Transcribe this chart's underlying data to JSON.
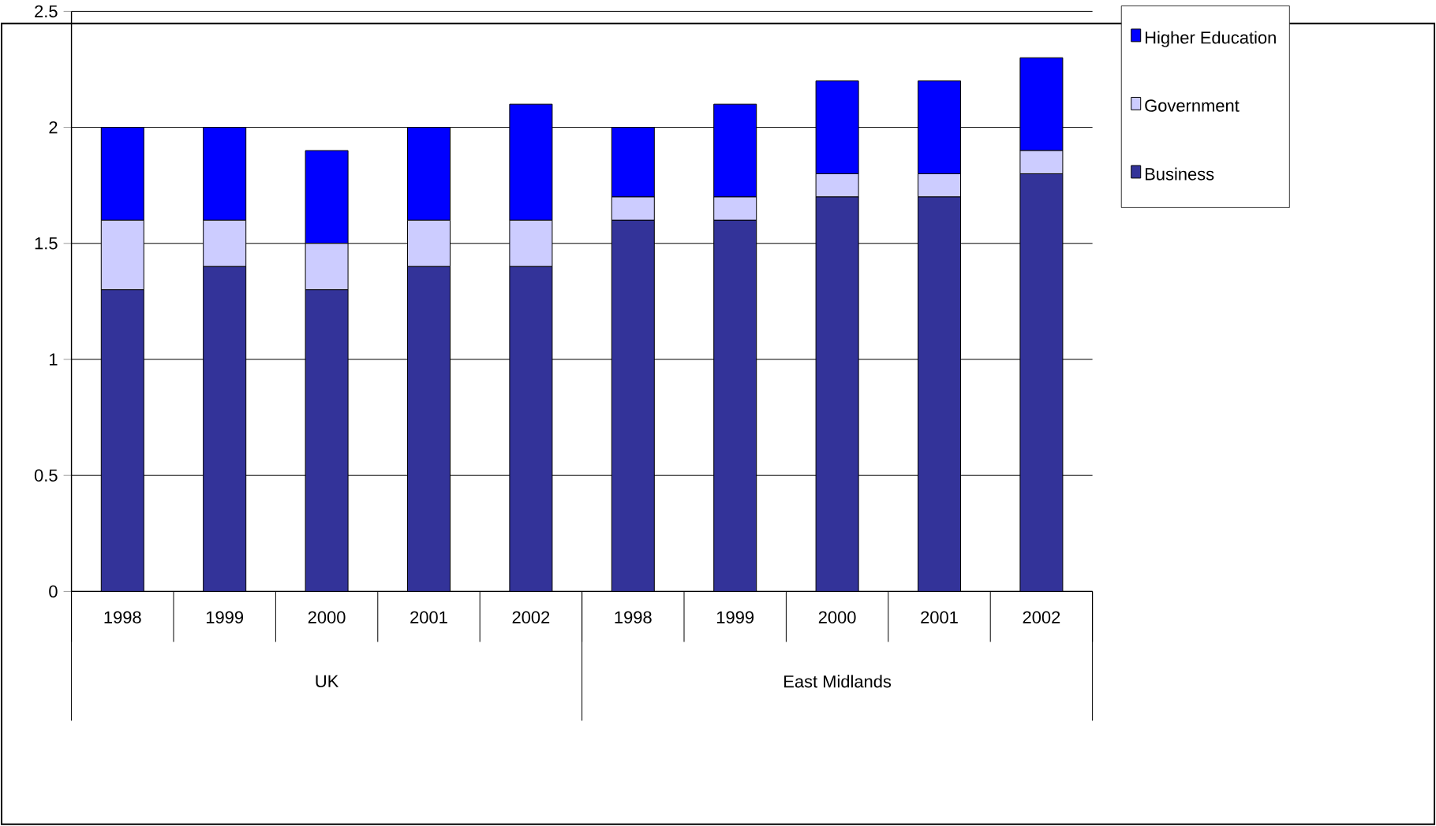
{
  "chart_data": {
    "type": "bar",
    "stacked": true,
    "categories": [
      "1998",
      "1999",
      "2000",
      "2001",
      "2002",
      "1998",
      "1999",
      "2000",
      "2001",
      "2002"
    ],
    "series": [
      {
        "name": "Business",
        "color": "#333399",
        "values": [
          1.3,
          1.4,
          1.3,
          1.4,
          1.4,
          1.6,
          1.6,
          1.7,
          1.7,
          1.8
        ]
      },
      {
        "name": "Government",
        "color": "#ccccff",
        "values": [
          0.3,
          0.2,
          0.2,
          0.2,
          0.2,
          0.1,
          0.1,
          0.1,
          0.1,
          0.1
        ]
      },
      {
        "name": "Higher Education",
        "color": "#0000ff",
        "values": [
          0.4,
          0.4,
          0.4,
          0.4,
          0.5,
          0.3,
          0.4,
          0.4,
          0.4,
          0.4
        ]
      }
    ],
    "annotations": [
      "UK",
      "East Midlands"
    ],
    "ylim": [
      0,
      2.5
    ],
    "yticks": [
      0,
      0.5,
      1,
      1.5,
      2,
      2.5
    ],
    "grid": "y",
    "legend": "right"
  }
}
